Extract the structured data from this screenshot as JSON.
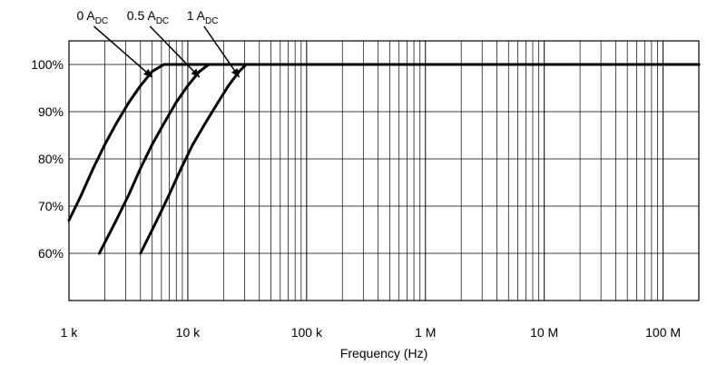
{
  "chart_data": {
    "type": "line",
    "title": "",
    "xlabel": "Frequency (Hz)",
    "ylabel": "",
    "x_scale": "log",
    "xlim": [
      1000,
      200000000
    ],
    "ylim": [
      50,
      105
    ],
    "grid": true,
    "x_ticks": [
      {
        "value": 1000,
        "label": "1 k"
      },
      {
        "value": 10000,
        "label": "10 k"
      },
      {
        "value": 100000,
        "label": "100 k"
      },
      {
        "value": 1000000,
        "label": "1 M"
      },
      {
        "value": 10000000,
        "label": "10 M"
      },
      {
        "value": 100000000,
        "label": "100 M"
      }
    ],
    "y_ticks": [
      {
        "value": 60,
        "label": "60%"
      },
      {
        "value": 70,
        "label": "70%"
      },
      {
        "value": 80,
        "label": "80%"
      },
      {
        "value": 90,
        "label": "90%"
      },
      {
        "value": 100,
        "label": "100%"
      }
    ],
    "series": [
      {
        "name": "0 ADC",
        "label_main": "0 A",
        "label_sub": "DC",
        "points": [
          [
            1000,
            67
          ],
          [
            1250,
            72
          ],
          [
            1600,
            78
          ],
          [
            2000,
            83
          ],
          [
            2500,
            87.5
          ],
          [
            3200,
            92
          ],
          [
            4000,
            95.5
          ],
          [
            5000,
            98.5
          ],
          [
            6300,
            100
          ],
          [
            200000000,
            100
          ]
        ]
      },
      {
        "name": "0.5 ADC",
        "label_main": "0.5 A",
        "label_sub": "DC",
        "points": [
          [
            1800,
            60
          ],
          [
            2500,
            67
          ],
          [
            3200,
            72.5
          ],
          [
            4000,
            78
          ],
          [
            5000,
            83
          ],
          [
            6300,
            87.5
          ],
          [
            8000,
            92
          ],
          [
            10000,
            95.5
          ],
          [
            12500,
            98.5
          ],
          [
            15000,
            100
          ],
          [
            200000000,
            100
          ]
        ]
      },
      {
        "name": "1 ADC",
        "label_main": "1 A",
        "label_sub": "DC",
        "points": [
          [
            4000,
            60
          ],
          [
            5500,
            67
          ],
          [
            7000,
            72.5
          ],
          [
            8800,
            78
          ],
          [
            11000,
            83
          ],
          [
            14000,
            87.5
          ],
          [
            18000,
            92
          ],
          [
            22000,
            95.5
          ],
          [
            27000,
            98.5
          ],
          [
            31000,
            100
          ],
          [
            200000000,
            100
          ]
        ]
      }
    ],
    "annotations": [
      {
        "series": 0,
        "label_x": 1160,
        "arrow_to": [
          5000,
          98.5
        ]
      },
      {
        "series": 1,
        "label_x": 3070,
        "arrow_to": [
          12500,
          98.5
        ]
      },
      {
        "series": 2,
        "label_x": 9800,
        "arrow_to": [
          27000,
          98.5
        ]
      }
    ]
  }
}
